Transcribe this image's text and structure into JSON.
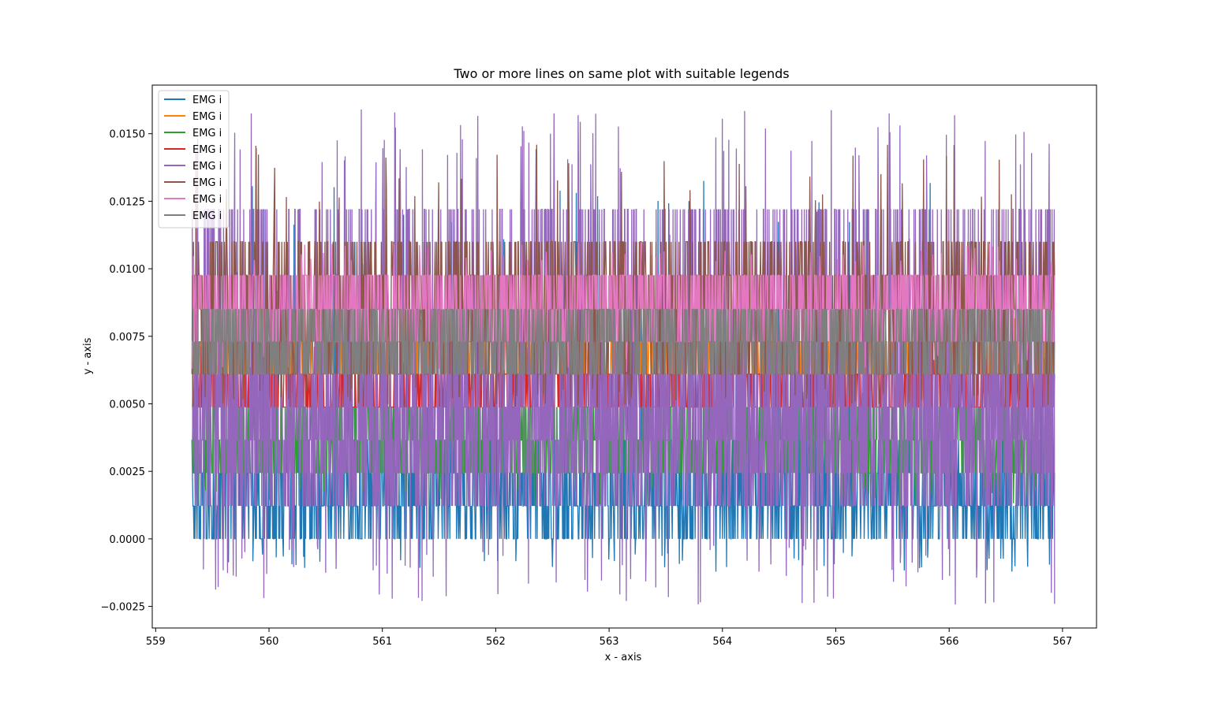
{
  "chart_data": {
    "type": "line",
    "title": "Two or more lines on same plot with suitable legends",
    "xlabel": "x - axis",
    "ylabel": "y - axis",
    "xlim": [
      558.97,
      567.3
    ],
    "ylim": [
      -0.0033,
      0.0168
    ],
    "x_ticks": [
      559,
      560,
      561,
      562,
      563,
      564,
      565,
      566,
      567
    ],
    "x_tick_labels": [
      "559",
      "560",
      "561",
      "562",
      "563",
      "564",
      "565",
      "566",
      "567"
    ],
    "y_ticks": [
      -0.0025,
      0.0,
      0.0025,
      0.005,
      0.0075,
      0.01,
      0.0125,
      0.015
    ],
    "y_tick_labels": [
      "−0.0025",
      "0.0000",
      "0.0025",
      "0.0050",
      "0.0075",
      "0.0100",
      "0.0125",
      "0.0150"
    ],
    "x_range": [
      559.32,
      566.93
    ],
    "grid": false,
    "legend_position": "top-left",
    "series": [
      {
        "name": "EMG i",
        "color": "#1f77b4",
        "levels": [
          0.0,
          0.00122,
          0.00244,
          0.00366
        ],
        "min": -0.00122,
        "max": 0.0134
      },
      {
        "name": "EMG i",
        "color": "#ff7f0e",
        "levels": [
          0.0061,
          0.0073
        ],
        "min": 0.0061,
        "max": 0.0085
      },
      {
        "name": "EMG i",
        "color": "#2ca02c",
        "levels": [
          0.00244,
          0.00366,
          0.00488
        ],
        "min": 0.00122,
        "max": 0.0061
      },
      {
        "name": "EMG i",
        "color": "#d62728",
        "levels": [
          0.00488,
          0.0061
        ],
        "min": 0.00488,
        "max": 0.0073
      },
      {
        "name": "EMG i",
        "color": "#9467bd",
        "levels": [
          0.00122,
          0.00244,
          0.00366,
          0.00488,
          0.0061,
          0.0122
        ],
        "min": -0.00244,
        "max": 0.0159
      },
      {
        "name": "EMG i",
        "color": "#8c564b",
        "levels": [
          0.0061,
          0.0073,
          0.0085,
          0.00976,
          0.011
        ],
        "min": 0.00488,
        "max": 0.01465
      },
      {
        "name": "EMG i",
        "color": "#e377c2",
        "levels": [
          0.0073,
          0.0085,
          0.00976
        ],
        "min": 0.0061,
        "max": 0.011
      },
      {
        "name": "EMG i",
        "color": "#7f7f7f",
        "levels": [
          0.0061,
          0.0073,
          0.0085
        ],
        "min": 0.0061,
        "max": 0.0085
      }
    ]
  }
}
